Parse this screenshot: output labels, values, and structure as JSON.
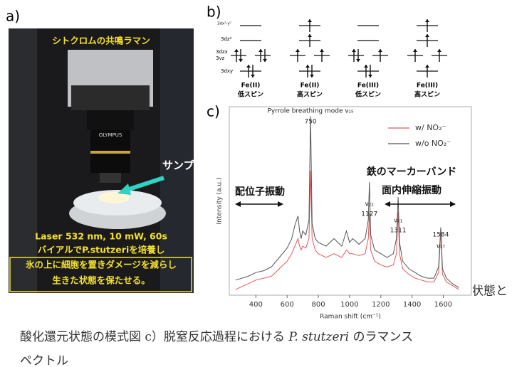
{
  "panel_a": {
    "label": "a)",
    "title": "シトクロムの共鳴ラマン",
    "objective": "OLYMPUS",
    "sample_label": "サンプル",
    "notes": [
      "Laser 532 nm, 10 mW, 60s",
      "バイアルでP.stutzeriを培養し",
      "氷の上に細胞を置きダメージを減らし",
      "生きた状態を保たせる。"
    ]
  },
  "panel_b": {
    "label": "b)",
    "orbital_labels": [
      "3dx²-y²",
      "3dz²",
      "3dzx",
      "3vz",
      "3dxy"
    ],
    "columns": [
      {
        "species": "Fe(II)",
        "spin": "低スピン"
      },
      {
        "species": "Fe(II)",
        "spin": "高スピン"
      },
      {
        "species": "Fe(III)",
        "spin": "低スピン"
      },
      {
        "species": "Fe(III)",
        "spin": "高スピン"
      }
    ]
  },
  "chart_data": {
    "type": "line",
    "label": "c)",
    "xlabel": "Raman shift (cm⁻¹)",
    "ylabel": "Intensity (a.u.)",
    "x": [
      270,
      350,
      400,
      450,
      500,
      550,
      600,
      630,
      650,
      670,
      680,
      690,
      700,
      720,
      740,
      750,
      760,
      780,
      800,
      850,
      900,
      950,
      980,
      1000,
      1020,
      1060,
      1100,
      1120,
      1127,
      1135,
      1160,
      1200,
      1240,
      1280,
      1300,
      1311,
      1320,
      1340,
      1380,
      1420,
      1460,
      1500,
      1540,
      1570,
      1584,
      1595,
      1620,
      1660,
      1700
    ],
    "series": [
      {
        "name": "w/ NO₂⁻",
        "color": "#e0595a",
        "values": [
          3,
          6,
          8,
          9,
          10,
          14,
          18,
          22,
          26,
          30,
          26,
          24,
          26,
          25,
          30,
          66,
          30,
          24,
          22,
          20,
          22,
          20,
          24,
          22,
          22,
          21,
          22,
          30,
          44,
          24,
          18,
          16,
          15,
          16,
          22,
          44,
          22,
          14,
          11,
          9,
          8,
          7,
          7,
          12,
          34,
          11,
          7,
          5,
          3
        ]
      },
      {
        "name": "w/o NO₂⁻",
        "color": "#555555",
        "values": [
          8,
          10,
          12,
          13,
          15,
          20,
          25,
          30,
          37,
          42,
          34,
          30,
          34,
          32,
          40,
          95,
          38,
          30,
          28,
          26,
          30,
          26,
          34,
          28,
          30,
          27,
          30,
          40,
          60,
          32,
          24,
          22,
          20,
          22,
          30,
          52,
          28,
          18,
          14,
          12,
          10,
          9,
          9,
          15,
          36,
          14,
          9,
          6,
          4
        ]
      }
    ],
    "xlim": [
      230,
      1780
    ],
    "xticks": [
      400,
      600,
      800,
      1000,
      1200,
      1400,
      1600
    ],
    "ylim": [
      0,
      100
    ],
    "legend": "upper right",
    "peaks": [
      {
        "label": "Pyrrole breathing mode ν₁₅",
        "value": 750
      },
      {
        "label": "ν₂₂",
        "value": 1127
      },
      {
        "label": "ν₂₁",
        "value": 1311
      },
      {
        "label": "ν₃₇",
        "value": 1584
      }
    ],
    "annotations": [
      "配位子振動",
      "鉄のマーカーバンド",
      "面内伸縮振動"
    ]
  },
  "caption": {
    "line1": "状態と",
    "line2_start": "酸化還元状態の模式図 c）脱窒反応過程における",
    "species": "P. stutzeri",
    "line2_end": "のラマンス",
    "line3": "ペクトル"
  }
}
